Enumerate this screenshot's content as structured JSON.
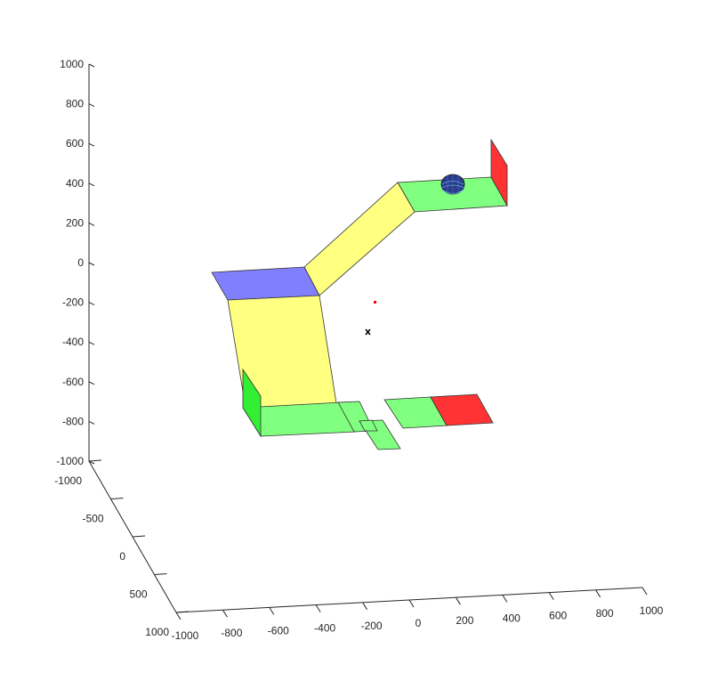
{
  "axes": {
    "z": {
      "ticks": [
        "1000",
        "800",
        "600",
        "400",
        "200",
        "0",
        "-200",
        "-400",
        "-600",
        "-800",
        "-1000"
      ]
    },
    "y": {
      "ticks": [
        "-1000",
        "-500",
        "0",
        "500",
        "1000"
      ]
    },
    "x": {
      "ticks": [
        "-1000",
        "-800",
        "-600",
        "-400",
        "-200",
        "0",
        "200",
        "400",
        "600",
        "800",
        "1000"
      ]
    }
  },
  "colors": {
    "axis": "#262626",
    "surface_green": "#80ff80",
    "surface_bright_green": "#33ee33",
    "surface_yellow": "#ffff80",
    "surface_blue": "#8080ff",
    "surface_red": "#ff3333",
    "marker_red": "#ff0000",
    "marker_black": "#000000",
    "sphere": "#2b3a8a"
  },
  "markers": [
    {
      "name": "red-point",
      "symbol": "dot"
    },
    {
      "name": "black-cross",
      "symbol": "x"
    }
  ]
}
